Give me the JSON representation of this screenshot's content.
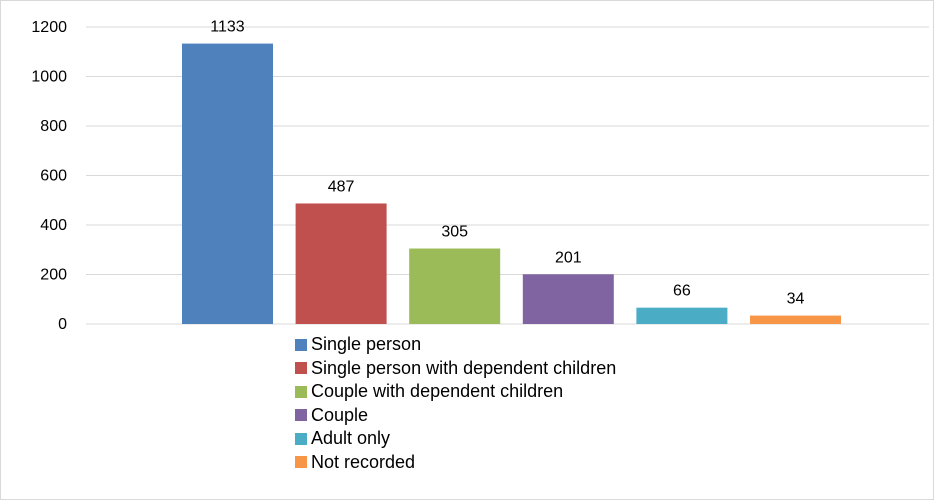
{
  "chart_data": {
    "type": "bar",
    "title": "",
    "xlabel": "",
    "ylabel": "",
    "ylim": [
      0,
      1200
    ],
    "yticks": [
      0,
      200,
      400,
      600,
      800,
      1000,
      1200
    ],
    "grid": true,
    "legend_position": "bottom",
    "series": [
      {
        "name": "Single person",
        "value": 1133,
        "color": "#4f81bd"
      },
      {
        "name": "Single person with dependent children",
        "value": 487,
        "color": "#c0504d"
      },
      {
        "name": "Couple with dependent children",
        "value": 305,
        "color": "#9bbb59"
      },
      {
        "name": "Couple",
        "value": 201,
        "color": "#8064a2"
      },
      {
        "name": "Adult only",
        "value": 66,
        "color": "#4bacc6"
      },
      {
        "name": "Not recorded",
        "value": 34,
        "color": "#f79646"
      }
    ]
  }
}
